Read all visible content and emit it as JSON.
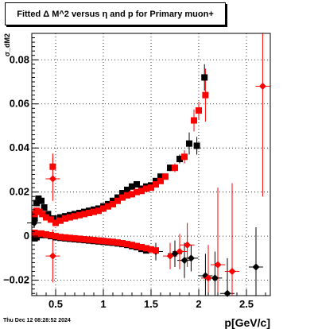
{
  "chart_data": {
    "type": "scatter",
    "title": "Fitted Δ M^2 versus η and p for Primary muon+",
    "xlabel": "p[GeV/c]",
    "ylabel": "σ_dM2",
    "xlim": [
      0.25,
      2.75
    ],
    "ylim": [
      -0.027,
      0.092
    ],
    "x_ticks": [
      0.5,
      1.0,
      1.5,
      2.0,
      2.5
    ],
    "x_tick_labels": [
      "0.5",
      "1",
      "1.5",
      "2",
      "2.5"
    ],
    "y_ticks": [
      -0.02,
      0,
      0.02,
      0.04,
      0.06,
      0.08
    ],
    "y_tick_labels": [
      "−0.02",
      "0",
      "0.02",
      "0.04",
      "0.06",
      "0.08"
    ],
    "grid": true,
    "series": [
      {
        "color": "#000000",
        "marker": "square",
        "points": [
          [
            0.28,
            0.008
          ],
          [
            0.3,
            0.015
          ],
          [
            0.32,
            0.017
          ],
          [
            0.35,
            0.016
          ],
          [
            0.38,
            0.013
          ],
          [
            0.42,
            0.01
          ],
          [
            0.48,
            0.008
          ],
          [
            0.55,
            0.0085
          ],
          [
            0.6,
            0.009
          ],
          [
            0.65,
            0.0095
          ],
          [
            0.7,
            0.01
          ],
          [
            0.75,
            0.0105
          ],
          [
            0.8,
            0.011
          ],
          [
            0.85,
            0.0115
          ],
          [
            0.9,
            0.012
          ],
          [
            0.95,
            0.0125
          ],
          [
            1.0,
            0.0135
          ],
          [
            1.05,
            0.0145
          ],
          [
            1.1,
            0.016
          ],
          [
            1.15,
            0.0175
          ],
          [
            1.2,
            0.0195
          ],
          [
            1.25,
            0.021
          ],
          [
            1.3,
            0.0225
          ],
          [
            1.35,
            0.0235
          ],
          [
            1.4,
            0.0215
          ],
          [
            1.45,
            0.0225
          ],
          [
            1.5,
            0.023
          ],
          [
            1.55,
            0.025
          ],
          [
            1.6,
            0.027
          ],
          [
            1.7,
            0.031
          ],
          [
            1.8,
            0.035
          ],
          [
            1.9,
            0.042
          ],
          [
            1.98,
            0.041
          ],
          [
            2.06,
            0.072
          ]
        ],
        "errors": [
          0,
          0,
          0,
          0,
          0,
          0,
          0,
          0,
          0,
          0,
          0,
          0,
          0,
          0,
          0,
          0,
          0,
          0,
          0,
          0,
          0,
          0,
          0,
          0,
          0,
          0,
          0,
          0.001,
          0.001,
          0.0015,
          0.002,
          0.005,
          0.004,
          0.006
        ]
      },
      {
        "color": "#000000",
        "marker": "square",
        "points": [
          [
            0.28,
            -0.001
          ],
          [
            0.3,
            -0.0005
          ],
          [
            0.35,
            0.0005
          ],
          [
            0.4,
            0.0005
          ],
          [
            0.45,
            0.0
          ],
          [
            0.5,
            -0.0005
          ],
          [
            0.55,
            -0.0008
          ],
          [
            0.6,
            -0.001
          ],
          [
            0.65,
            -0.0012
          ],
          [
            0.7,
            -0.0014
          ],
          [
            0.75,
            -0.0016
          ],
          [
            0.8,
            -0.0018
          ],
          [
            0.85,
            -0.002
          ],
          [
            0.9,
            -0.0022
          ],
          [
            0.95,
            -0.0024
          ],
          [
            1.0,
            -0.0026
          ],
          [
            1.05,
            -0.0028
          ],
          [
            1.1,
            -0.003
          ],
          [
            1.15,
            -0.0033
          ],
          [
            1.2,
            -0.0036
          ],
          [
            1.25,
            -0.004
          ],
          [
            1.3,
            -0.0045
          ],
          [
            1.35,
            -0.005
          ],
          [
            1.4,
            -0.0058
          ],
          [
            1.45,
            -0.0065
          ]
        ],
        "errors": []
      },
      {
        "color": "#000000",
        "marker": "diamond",
        "points": [
          [
            0.275,
            0.006
          ],
          [
            1.55,
            -0.007
          ],
          [
            1.75,
            -0.008
          ],
          [
            1.85,
            -0.011
          ],
          [
            1.92,
            -0.01
          ],
          [
            2.07,
            -0.018
          ],
          [
            2.17,
            -0.019
          ],
          [
            2.3,
            -0.026
          ],
          [
            2.6,
            -0.014
          ]
        ],
        "errors": [
          0.002,
          0.004,
          0.006,
          0.008,
          0.006,
          0.01,
          0.012,
          0.016,
          0.018
        ]
      },
      {
        "color": "#ff0000",
        "marker": "square",
        "points": [
          [
            0.28,
            0.01
          ],
          [
            0.3,
            0.0115
          ],
          [
            0.33,
            0.011
          ],
          [
            0.36,
            0.01
          ],
          [
            0.4,
            0.0085
          ],
          [
            0.45,
            0.0075
          ],
          [
            0.47,
            0.0315
          ],
          [
            0.5,
            0.006
          ],
          [
            0.55,
            0.007
          ],
          [
            0.6,
            0.008
          ],
          [
            0.65,
            0.0085
          ],
          [
            0.7,
            0.009
          ],
          [
            0.75,
            0.0095
          ],
          [
            0.8,
            0.01
          ],
          [
            0.85,
            0.0105
          ],
          [
            0.9,
            0.011
          ],
          [
            0.95,
            0.0115
          ],
          [
            1.0,
            0.0125
          ],
          [
            1.05,
            0.0135
          ],
          [
            1.1,
            0.0145
          ],
          [
            1.15,
            0.016
          ],
          [
            1.2,
            0.0175
          ],
          [
            1.25,
            0.0185
          ],
          [
            1.3,
            0.019
          ],
          [
            1.35,
            0.02
          ],
          [
            1.4,
            0.0205
          ],
          [
            1.45,
            0.0215
          ],
          [
            1.5,
            0.022
          ],
          [
            1.55,
            0.0235
          ],
          [
            1.6,
            0.025
          ],
          [
            1.65,
            0.027
          ],
          [
            1.75,
            0.031
          ],
          [
            1.85,
            0.036
          ],
          [
            1.95,
            0.0525
          ],
          [
            2.0,
            0.057
          ],
          [
            2.07,
            0.064
          ]
        ],
        "errors": [
          0,
          0,
          0,
          0,
          0,
          0,
          0.006,
          0,
          0,
          0,
          0,
          0,
          0,
          0,
          0,
          0,
          0,
          0,
          0,
          0,
          0,
          0,
          0,
          0,
          0,
          0,
          0,
          0,
          0.001,
          0.001,
          0.0015,
          0.002,
          0.003,
          0.005,
          0.004,
          0.012
        ]
      },
      {
        "color": "#ff0000",
        "marker": "square",
        "points": [
          [
            0.28,
            0.0015
          ],
          [
            0.3,
            0.001
          ],
          [
            0.35,
            0.0012
          ],
          [
            0.4,
            0.0008
          ],
          [
            0.45,
            0.0004
          ],
          [
            0.5,
            0.0
          ],
          [
            0.55,
            -0.0004
          ],
          [
            0.6,
            -0.0006
          ],
          [
            0.65,
            -0.0008
          ],
          [
            0.7,
            -0.001
          ],
          [
            0.75,
            -0.0012
          ],
          [
            0.8,
            -0.0014
          ],
          [
            0.85,
            -0.0016
          ],
          [
            0.9,
            -0.0018
          ],
          [
            0.95,
            -0.002
          ],
          [
            1.0,
            -0.0022
          ],
          [
            1.05,
            -0.0024
          ],
          [
            1.1,
            -0.0026
          ],
          [
            1.15,
            -0.0029
          ],
          [
            1.2,
            -0.0032
          ],
          [
            1.25,
            -0.0036
          ],
          [
            1.3,
            -0.004
          ],
          [
            1.35,
            -0.0045
          ],
          [
            1.4,
            -0.005
          ],
          [
            1.45,
            -0.0055
          ],
          [
            1.5,
            -0.006
          ],
          [
            1.55,
            -0.0065
          ]
        ],
        "errors": []
      },
      {
        "color": "#ff0000",
        "marker": "diamond",
        "points": [
          [
            0.47,
            0.026
          ],
          [
            0.47,
            -0.009
          ],
          [
            1.7,
            -0.009
          ],
          [
            1.8,
            -0.007
          ],
          [
            1.88,
            -0.004
          ],
          [
            2.1,
            -0.019
          ],
          [
            2.2,
            -0.013
          ],
          [
            2.35,
            -0.016
          ],
          [
            2.67,
            0.068
          ]
        ],
        "errors": [
          0.01,
          0.012,
          0.006,
          0.008,
          0.01,
          0.015,
          0.035,
          0.04,
          0.05
        ]
      }
    ]
  },
  "footer": "Thu Dec 12 08:28:52 2024"
}
